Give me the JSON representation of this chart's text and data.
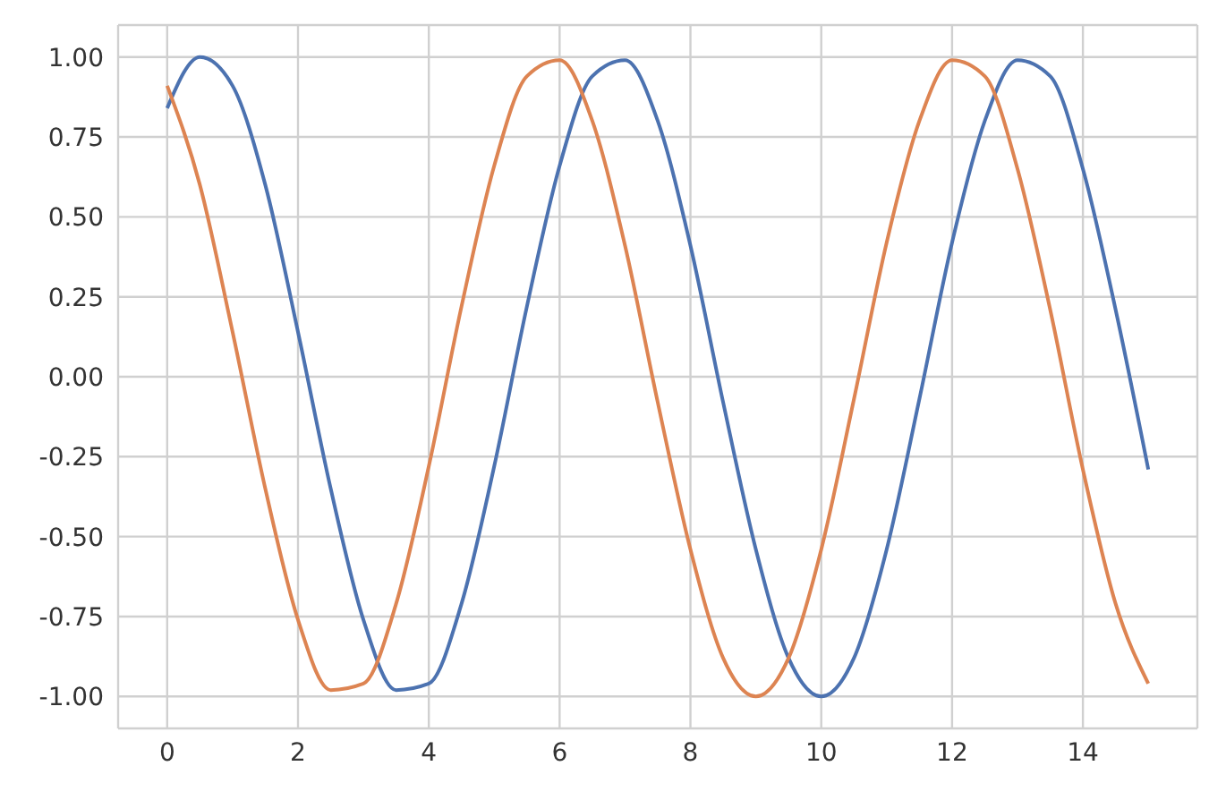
{
  "chart_data": {
    "type": "line",
    "x": [
      0,
      0.5,
      1,
      1.5,
      2,
      2.5,
      3,
      3.5,
      4,
      4.5,
      5,
      5.5,
      6,
      6.5,
      7,
      7.5,
      8,
      8.5,
      9,
      9.5,
      10,
      10.5,
      11,
      11.5,
      12,
      12.5,
      13,
      13.5,
      14,
      14.5,
      15
    ],
    "series": [
      {
        "color": "#4c72b0",
        "values": [
          0.84,
          1.0,
          0.91,
          0.6,
          0.14,
          -0.35,
          -0.76,
          -0.98,
          -0.96,
          -0.71,
          -0.28,
          0.22,
          0.66,
          0.94,
          0.99,
          0.8,
          0.41,
          -0.08,
          -0.54,
          -0.88,
          -1.0,
          -0.88,
          -0.54,
          -0.07,
          0.42,
          0.8,
          0.99,
          0.94,
          0.65,
          0.21,
          -0.29
        ]
      },
      {
        "color": "#dd8452",
        "values": [
          0.91,
          0.6,
          0.14,
          -0.35,
          -0.76,
          -0.98,
          -0.96,
          -0.71,
          -0.28,
          0.22,
          0.66,
          0.94,
          0.99,
          0.8,
          0.41,
          -0.08,
          -0.54,
          -0.88,
          -1.0,
          -0.88,
          -0.54,
          -0.07,
          0.42,
          0.8,
          0.99,
          0.94,
          0.65,
          0.21,
          -0.29,
          -0.71,
          -0.96
        ]
      }
    ],
    "xlim": [
      -0.75,
      15.75
    ],
    "xticks": [
      0,
      2,
      4,
      6,
      8,
      10,
      12,
      14
    ],
    "ylim": [
      -1.1,
      1.1
    ],
    "yticks": [
      {
        "value": -1,
        "label": "-1.00"
      },
      {
        "value": -0.75,
        "label": "-0.75"
      },
      {
        "value": -0.5,
        "label": "-0.50"
      },
      {
        "value": -0.25,
        "label": "-0.25"
      },
      {
        "value": 0,
        "label": "0.00"
      },
      {
        "value": 0.25,
        "label": "0.25"
      },
      {
        "value": 0.5,
        "label": "0.50"
      },
      {
        "value": 0.75,
        "label": "0.75"
      },
      {
        "value": 1,
        "label": "1.00"
      }
    ],
    "grid": true,
    "marker": "none",
    "line_style": "solid",
    "legend": false
  }
}
